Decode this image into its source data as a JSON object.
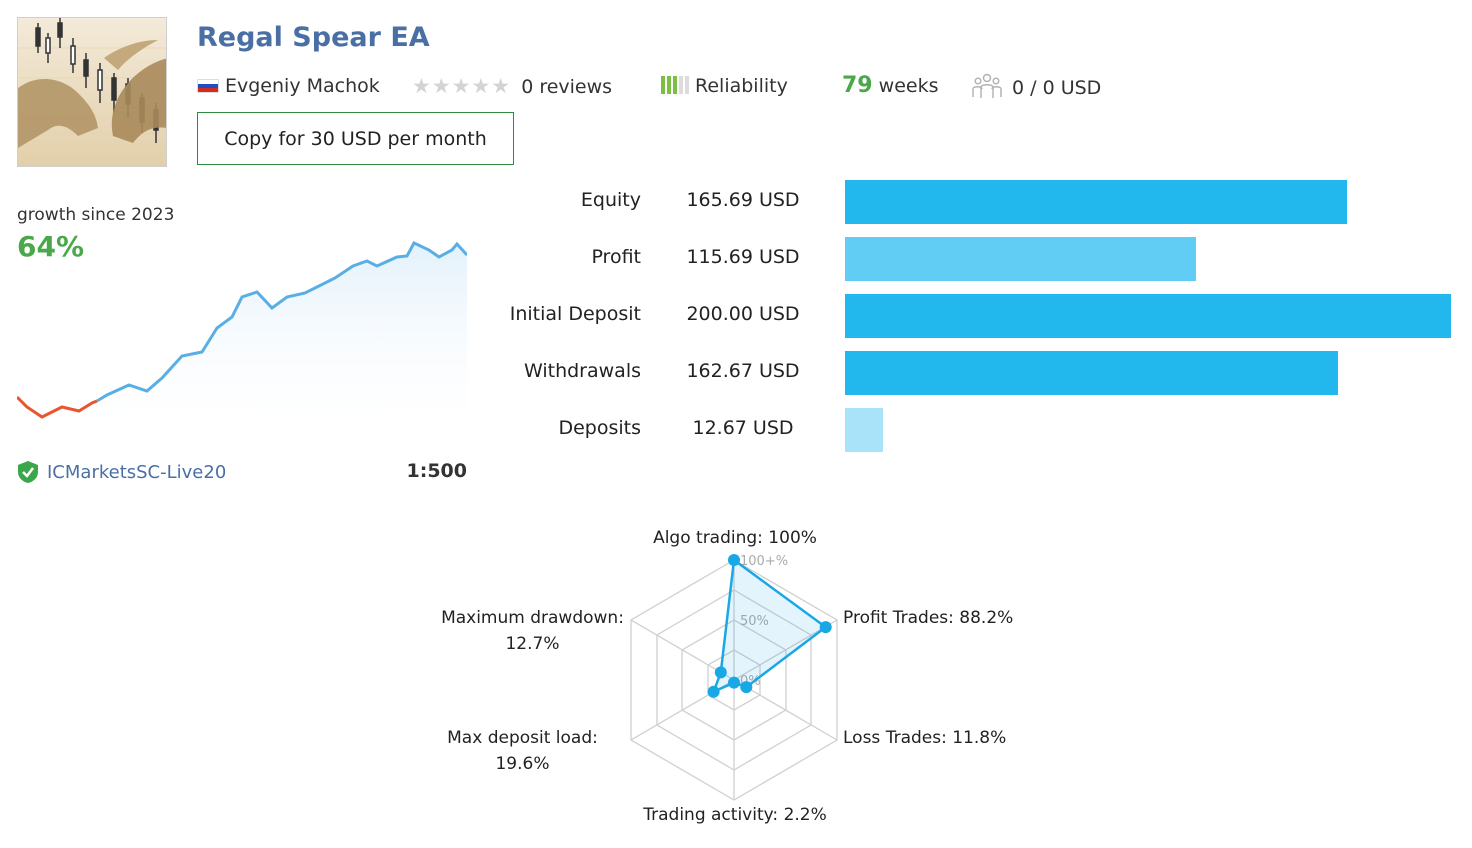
{
  "header": {
    "title": "Regal Spear EA",
    "author": "Evgeniy Machok",
    "reviews": "0 reviews",
    "rating_stars": 0,
    "reliability_label": "Reliability",
    "reliability_bars": 3,
    "weeks_value": "79",
    "weeks_label": "weeks",
    "subscribers": "0 / 0 USD",
    "copy_button": "Copy for 30 USD per month"
  },
  "growth": {
    "label": "growth since 2023",
    "value": "64%",
    "broker": "ICMarketsSC-Live20",
    "leverage": "1:500"
  },
  "financials": [
    {
      "label": "Equity",
      "value": "165.69 USD",
      "amount": 165.69,
      "color": "#22b8ee"
    },
    {
      "label": "Profit",
      "value": "115.69 USD",
      "amount": 115.69,
      "color": "#62cdf4"
    },
    {
      "label": "Initial Deposit",
      "value": "200.00 USD",
      "amount": 200.0,
      "color": "#22b8ee"
    },
    {
      "label": "Withdrawals",
      "value": "162.67 USD",
      "amount": 162.67,
      "color": "#22b8ee"
    },
    {
      "label": "Deposits",
      "value": "12.67 USD",
      "amount": 12.67,
      "color": "#a8e3fa"
    }
  ],
  "radar": {
    "algo": "Algo trading: 100%",
    "profit": "Profit Trades: 88.2%",
    "loss": "Loss Trades: 11.8%",
    "activity": "Trading activity: 2.2%",
    "load_name": "Max deposit load:",
    "load_value": "19.6%",
    "drawdown_name": "Maximum drawdown:",
    "drawdown_value": "12.7%",
    "tick_100": "100+%",
    "tick_50": "50%",
    "tick_0": "0%",
    "values": [
      100,
      88.2,
      11.8,
      2.2,
      19.6,
      12.7
    ]
  },
  "colors": {
    "accent_blue": "#4a6fa5",
    "positive": "#4aa84a",
    "line": "#5aaee6",
    "negative": "#e8552e",
    "radar": "#1aa7e6"
  }
}
